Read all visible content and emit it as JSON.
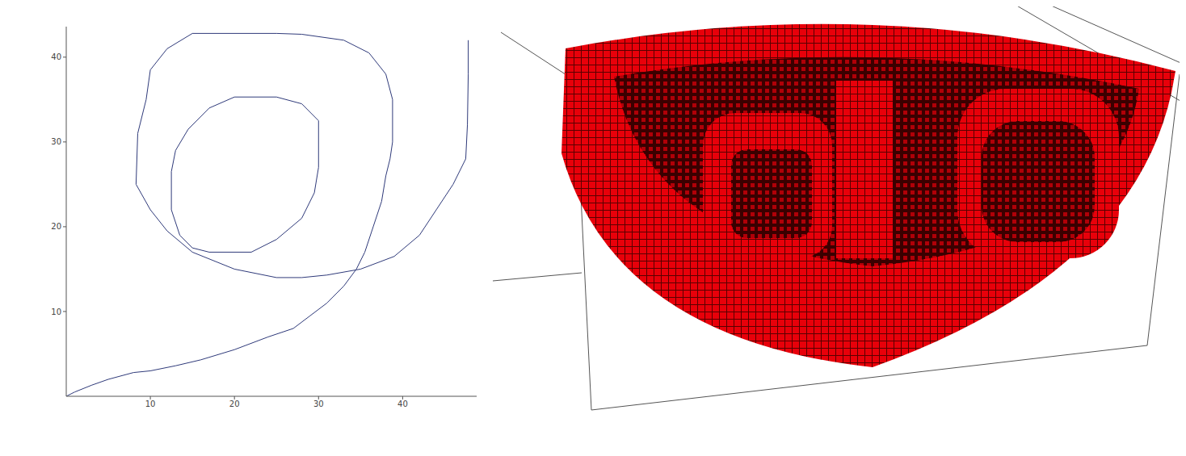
{
  "chart_data": {
    "type": "line",
    "x": [
      0,
      1,
      3,
      5,
      8,
      10,
      13,
      16,
      20,
      24,
      27,
      29,
      31,
      33,
      34.5,
      35.5,
      36.5,
      37.5,
      38,
      38.5,
      38.8,
      38.8,
      38,
      36,
      33,
      28,
      25,
      15,
      12,
      10,
      9.5,
      8.5,
      8.3,
      10,
      12,
      15,
      20,
      25,
      28,
      31,
      35,
      39,
      42,
      44,
      46,
      47.5,
      47.7,
      47.8,
      47.8,
      17,
      17,
      22,
      25,
      28,
      29.5,
      30,
      30,
      28,
      25,
      20,
      17,
      14.5,
      13,
      12.5,
      12.5,
      13.5,
      15,
      17
    ],
    "values": [
      0,
      0.5,
      1.3,
      2,
      2.8,
      3,
      3.6,
      4.3,
      5.5,
      7,
      8,
      9.5,
      11,
      13,
      15,
      17,
      20,
      23,
      26,
      28,
      30,
      35,
      38,
      40.5,
      42,
      42.7,
      42.8,
      42.8,
      41,
      38.5,
      35,
      31,
      25,
      22,
      19.5,
      17,
      15,
      14,
      14,
      14.3,
      15,
      16.5,
      19,
      22,
      25,
      28,
      32,
      38,
      42,
      null,
      17,
      17,
      18.5,
      21,
      24,
      27,
      32.5,
      34.5,
      35.3,
      35.3,
      34,
      31.5,
      29,
      26.5,
      22,
      19,
      17.5,
      17
    ],
    "color": "#2f3a7a",
    "xlim": [
      0,
      48.8
    ],
    "ylim": [
      0,
      43.6
    ],
    "xticks": [
      10,
      20,
      30,
      40
    ],
    "yticks": [
      10,
      20,
      30,
      40
    ]
  }
}
